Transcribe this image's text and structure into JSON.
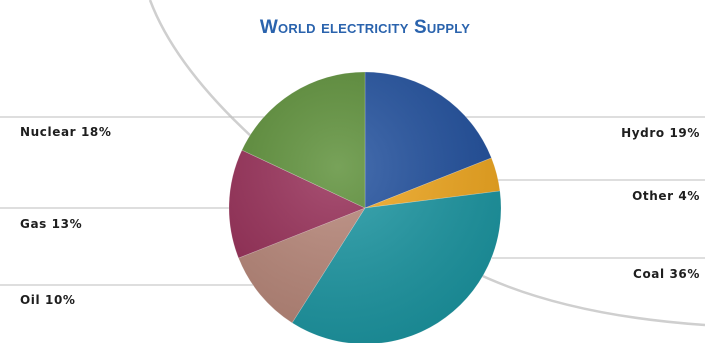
{
  "chart_data": {
    "type": "pie",
    "title": "World electricity Supply",
    "slices": [
      {
        "name": "Hydro",
        "value": 19,
        "label": "Hydro 19%",
        "color": "#1f4f9e"
      },
      {
        "name": "Other",
        "value": 4,
        "label": "Other 4%",
        "color": "#f2a81d"
      },
      {
        "name": "Coal",
        "value": 36,
        "label": "Coal 36%",
        "color": "#1a97a3"
      },
      {
        "name": "Oil",
        "value": 10,
        "label": "Oil 10%",
        "color": "#b88678"
      },
      {
        "name": "Gas",
        "value": 13,
        "label": "Gas 13%",
        "color": "#962b55"
      },
      {
        "name": "Nuclear",
        "value": 18,
        "label": "Nuclear 18%",
        "color": "#5a8e35"
      }
    ],
    "title_color": "#2a63ad",
    "legend": "none"
  }
}
